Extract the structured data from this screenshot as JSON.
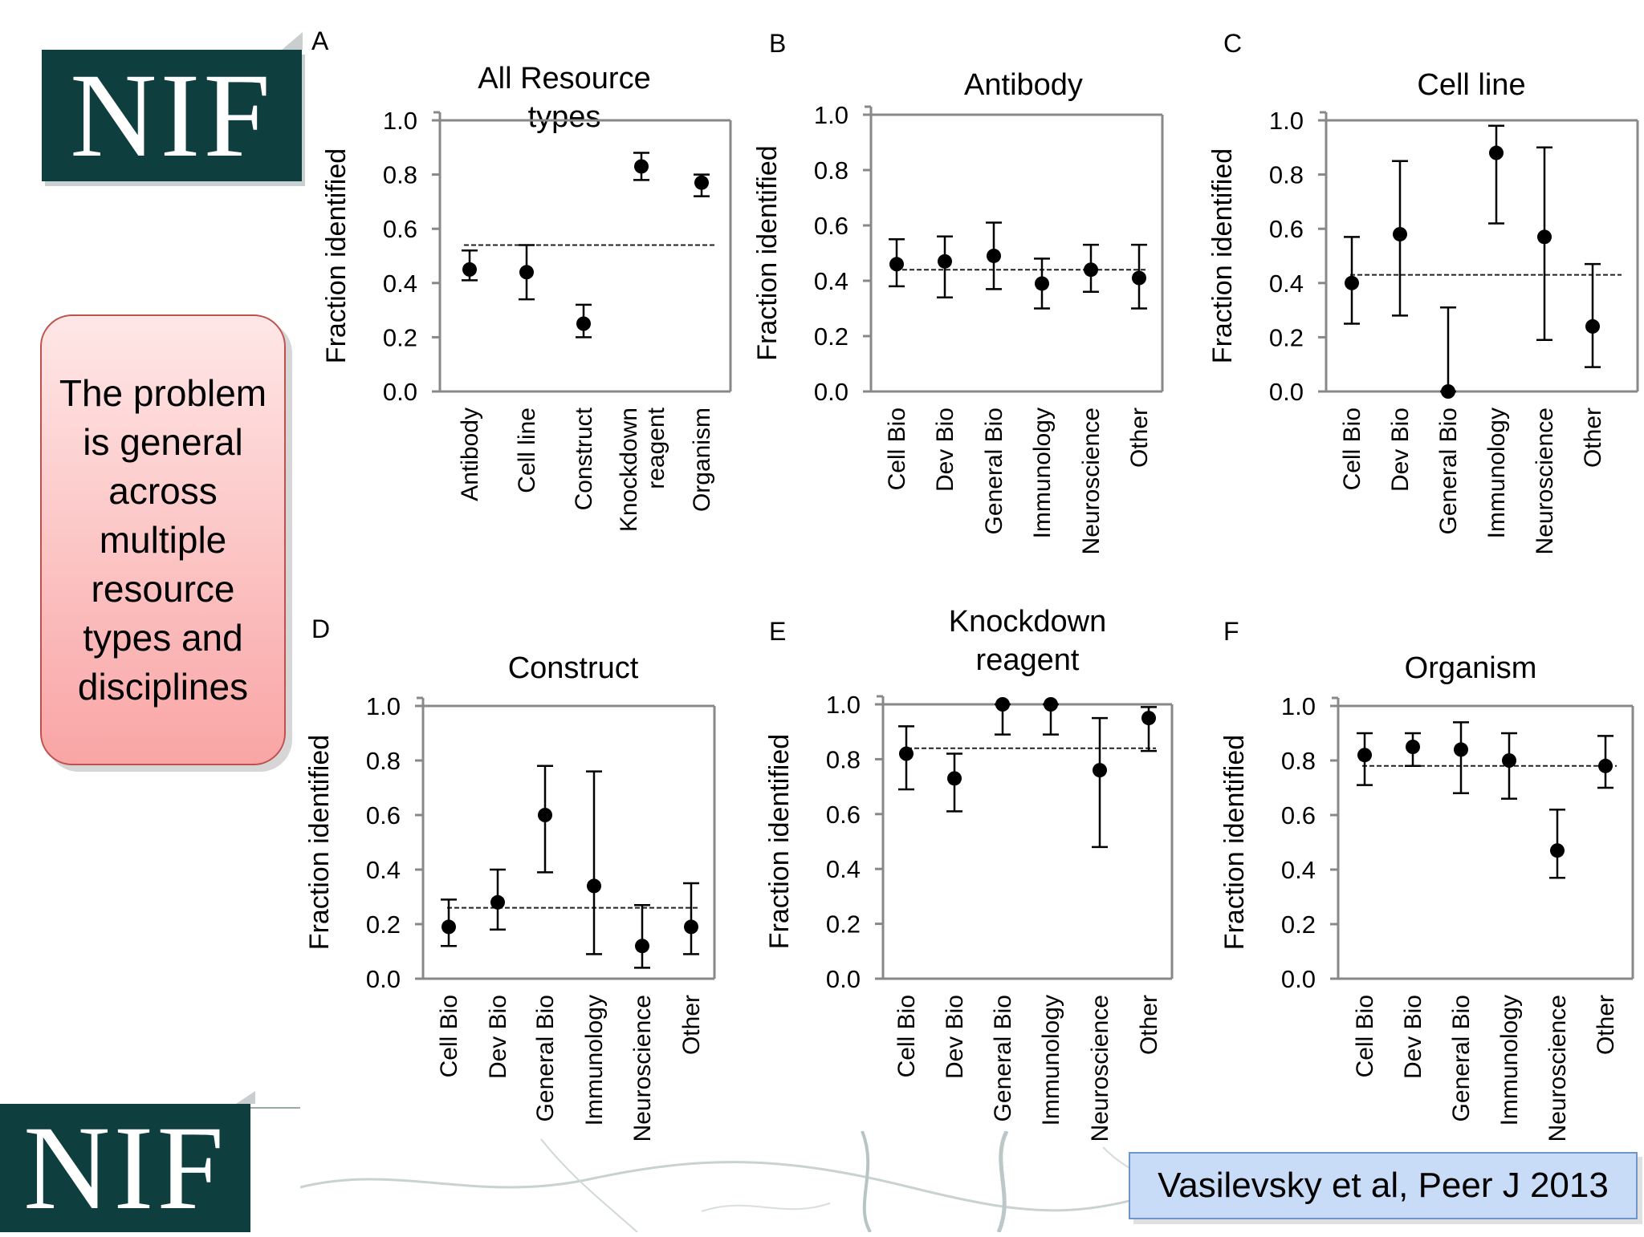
{
  "logo": {
    "text": "NIF"
  },
  "callout": {
    "text": "The problem is general across multiple resource types and disciplines"
  },
  "citation": {
    "text": "Vasilevsky et al, Peer J 2013"
  },
  "colors": {
    "logo_bg": "#0f3e3e",
    "callout_border": "#c0504d",
    "callout_fill": "#f9a5a5",
    "citation_fill": "#c9dcf7"
  },
  "chart_data": [
    {
      "type": "scatter",
      "panel": "A",
      "title": "All Resource types",
      "ylabel": "Fraction identified",
      "ylim": [
        0,
        1.0
      ],
      "yticks": [
        "0.0",
        "0.2",
        "0.4",
        "0.6",
        "0.8",
        "1.0"
      ],
      "categories": [
        "Antibody",
        "Cell line",
        "Construct",
        "Knockdown reagent",
        "Organism"
      ],
      "values": [
        0.45,
        0.44,
        0.25,
        0.83,
        0.77
      ],
      "err_low": [
        0.41,
        0.34,
        0.2,
        0.78,
        0.72
      ],
      "err_high": [
        0.52,
        0.54,
        0.32,
        0.88,
        0.8
      ],
      "reference_line": 0.54
    },
    {
      "type": "scatter",
      "panel": "B",
      "title": "Antibody",
      "ylabel": "Fraction identified",
      "ylim": [
        0,
        1.0
      ],
      "yticks": [
        "0.0",
        "0.2",
        "0.4",
        "0.6",
        "0.8",
        "1.0"
      ],
      "categories": [
        "Cell Bio",
        "Dev Bio",
        "General Bio",
        "Immunology",
        "Neuroscience",
        "Other"
      ],
      "values": [
        0.46,
        0.47,
        0.49,
        0.39,
        0.44,
        0.41
      ],
      "err_low": [
        0.38,
        0.34,
        0.37,
        0.3,
        0.36,
        0.3
      ],
      "err_high": [
        0.55,
        0.56,
        0.61,
        0.48,
        0.53,
        0.53
      ],
      "reference_line": 0.44
    },
    {
      "type": "scatter",
      "panel": "C",
      "title": "Cell line",
      "ylabel": "Fraction identified",
      "ylim": [
        0,
        1.0
      ],
      "yticks": [
        "0.0",
        "0.2",
        "0.4",
        "0.6",
        "0.8",
        "1.0"
      ],
      "categories": [
        "Cell Bio",
        "Dev Bio",
        "General Bio",
        "Immunology",
        "Neuroscience",
        "Other"
      ],
      "values": [
        0.4,
        0.58,
        0.0,
        0.88,
        0.57,
        0.24
      ],
      "err_low": [
        0.25,
        0.28,
        0.0,
        0.62,
        0.19,
        0.09
      ],
      "err_high": [
        0.57,
        0.85,
        0.31,
        0.98,
        0.9,
        0.47
      ],
      "reference_line": 0.43
    },
    {
      "type": "scatter",
      "panel": "D",
      "title": "Construct",
      "ylabel": "Fraction identified",
      "ylim": [
        0,
        1.0
      ],
      "yticks": [
        "0.0",
        "0.2",
        "0.4",
        "0.6",
        "0.8",
        "1.0"
      ],
      "categories": [
        "Cell Bio",
        "Dev Bio",
        "General Bio",
        "Immunology",
        "Neuroscience",
        "Other"
      ],
      "values": [
        0.19,
        0.28,
        0.6,
        0.34,
        0.12,
        0.19
      ],
      "err_low": [
        0.12,
        0.18,
        0.39,
        0.09,
        0.04,
        0.09
      ],
      "err_high": [
        0.29,
        0.4,
        0.78,
        0.76,
        0.27,
        0.35
      ],
      "reference_line": 0.26
    },
    {
      "type": "scatter",
      "panel": "E",
      "title": "Knockdown reagent",
      "ylabel": "Fraction identified",
      "ylim": [
        0,
        1.0
      ],
      "yticks": [
        "0.0",
        "0.2",
        "0.4",
        "0.6",
        "0.8",
        "1.0"
      ],
      "categories": [
        "Cell Bio",
        "Dev Bio",
        "General Bio",
        "Immunology",
        "Neuroscience",
        "Other"
      ],
      "values": [
        0.82,
        0.73,
        1.0,
        1.0,
        0.76,
        0.95
      ],
      "err_low": [
        0.69,
        0.61,
        0.89,
        0.89,
        0.48,
        0.83
      ],
      "err_high": [
        0.92,
        0.82,
        1.0,
        1.0,
        0.95,
        0.99
      ],
      "reference_line": 0.84
    },
    {
      "type": "scatter",
      "panel": "F",
      "title": "Organism",
      "ylabel": "Fraction identified",
      "ylim": [
        0,
        1.0
      ],
      "yticks": [
        "0.0",
        "0.2",
        "0.4",
        "0.6",
        "0.8",
        "1.0"
      ],
      "categories": [
        "Cell Bio",
        "Dev Bio",
        "General Bio",
        "Immunology",
        "Neuroscience",
        "Other"
      ],
      "values": [
        0.82,
        0.85,
        0.84,
        0.8,
        0.47,
        0.78
      ],
      "err_low": [
        0.71,
        0.78,
        0.68,
        0.66,
        0.37,
        0.7
      ],
      "err_high": [
        0.9,
        0.9,
        0.94,
        0.9,
        0.62,
        0.89
      ],
      "reference_line": 0.78
    }
  ]
}
